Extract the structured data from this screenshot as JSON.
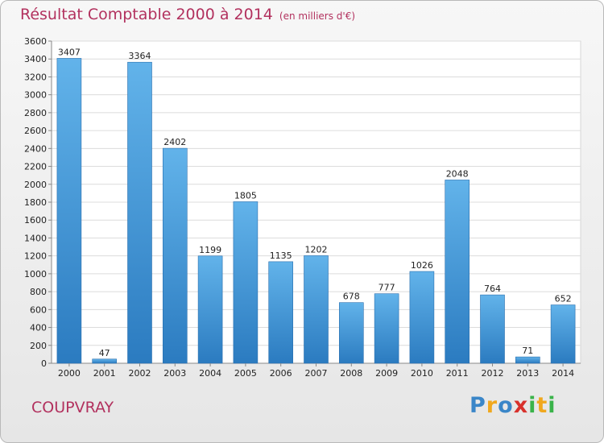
{
  "chart_data": {
    "type": "bar",
    "title": "Résultat Comptable 2000 à 2014",
    "subtitle": "(en milliers d'€)",
    "categories": [
      "2000",
      "2001",
      "2002",
      "2003",
      "2004",
      "2005",
      "2006",
      "2007",
      "2008",
      "2009",
      "2010",
      "2011",
      "2012",
      "2013",
      "2014"
    ],
    "values": [
      3407,
      47,
      3364,
      2402,
      1199,
      1805,
      1135,
      1202,
      678,
      777,
      1026,
      2048,
      764,
      71,
      652
    ],
    "ylim": [
      0,
      3600
    ],
    "ytick_step": 200,
    "xlabel": "",
    "ylabel": "",
    "grid": true,
    "colors": {
      "bar_top": "#62b3ea",
      "bar_bottom": "#2b7bc0",
      "title": "#b2315e"
    }
  },
  "location": "COUPVRAY",
  "brand": {
    "letters": [
      "P",
      "r",
      "o",
      "x",
      "i",
      "t",
      "i"
    ],
    "colors": [
      "#3a86c8",
      "#f0a81e",
      "#3a86c8",
      "#d8312c",
      "#3ab34a",
      "#f0a81e",
      "#3ab34a"
    ]
  }
}
